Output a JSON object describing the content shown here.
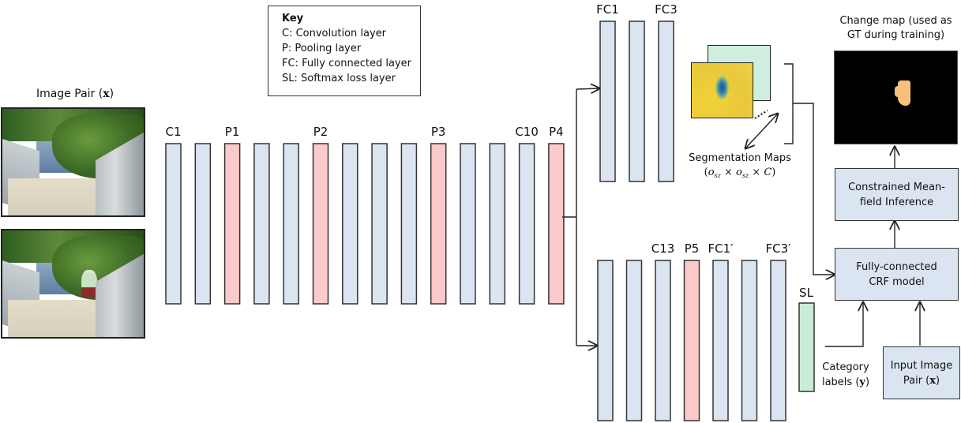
{
  "key": {
    "title": "Key",
    "items": [
      "C: Convolution layer",
      "P: Pooling layer",
      "FC: Fully connected layer",
      "SL: Softmax loss layer"
    ]
  },
  "input": {
    "title_prefix": "Image Pair (",
    "title_var": "x",
    "title_suffix": ")",
    "images": [
      {
        "name": "image-before",
        "has_person": false
      },
      {
        "name": "image-after",
        "has_person": true
      }
    ]
  },
  "colors": {
    "conv": "#dbe5f1",
    "pool": "#fccaca",
    "softmax": "#c9ecd6",
    "stroke": "#333333"
  },
  "trunk": {
    "layers": [
      {
        "type": "conv",
        "label": "C1"
      },
      {
        "type": "conv",
        "label": ""
      },
      {
        "type": "pool",
        "label": "P1"
      },
      {
        "type": "conv",
        "label": ""
      },
      {
        "type": "conv",
        "label": ""
      },
      {
        "type": "pool",
        "label": "P2"
      },
      {
        "type": "conv",
        "label": ""
      },
      {
        "type": "conv",
        "label": ""
      },
      {
        "type": "conv",
        "label": ""
      },
      {
        "type": "pool",
        "label": "P3"
      },
      {
        "type": "conv",
        "label": ""
      },
      {
        "type": "conv",
        "label": ""
      },
      {
        "type": "conv",
        "label": "C10"
      },
      {
        "type": "pool",
        "label": "P4"
      }
    ]
  },
  "top_branch": {
    "layers": [
      {
        "type": "conv",
        "label": "FC1"
      },
      {
        "type": "conv",
        "label": ""
      },
      {
        "type": "conv",
        "label": "FC3"
      }
    ]
  },
  "bottom_branch": {
    "layers": [
      {
        "type": "conv",
        "label": ""
      },
      {
        "type": "conv",
        "label": ""
      },
      {
        "type": "conv",
        "label": "C13"
      },
      {
        "type": "pool",
        "label": "P5"
      },
      {
        "type": "conv",
        "label": "FC1′"
      },
      {
        "type": "conv",
        "label": ""
      },
      {
        "type": "conv",
        "label": "FC3′"
      }
    ],
    "softmax_label": "SL"
  },
  "segmentation": {
    "label": "Segmentation Maps",
    "dims": "(oₛₓ × oₛₓ × C)",
    "dims_parts": {
      "open": "(",
      "a": "o",
      "sub": "sz",
      "times": " × ",
      "c": "C",
      "close": ")"
    }
  },
  "category": {
    "line1": "Category",
    "line2_prefix": "labels (",
    "line2_var": "y",
    "line2_suffix": ")"
  },
  "crf": {
    "line1": "Fully-connected",
    "line2": "CRF model"
  },
  "meanfield": {
    "line1": "Constrained Mean-",
    "line2": "field Inference"
  },
  "input_pair_box": {
    "line1": "Input Image",
    "line2_prefix": "Pair (",
    "line2_var": "x",
    "line2_suffix": ")"
  },
  "changemap": {
    "line1": "Change map (used as",
    "line2": "GT during training)"
  }
}
